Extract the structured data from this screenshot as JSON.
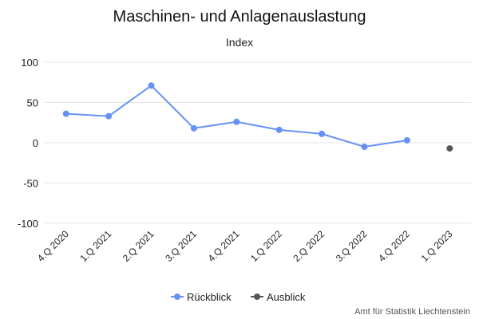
{
  "chart_data": {
    "type": "line",
    "title": "Maschinen- und Anlagenauslastung",
    "subtitle": "Index",
    "categories": [
      "4.Q 2020",
      "1.Q 2021",
      "2.Q 2021",
      "3.Q 2021",
      "4.Q 2021",
      "1.Q 2022",
      "2.Q 2022",
      "3.Q 2022",
      "4.Q 2022",
      "1.Q 2023"
    ],
    "ylim": [
      -100,
      100
    ],
    "yticks": [
      -100,
      -50,
      0,
      50,
      100
    ],
    "grid": true,
    "legend_position": "bottom-center",
    "series": [
      {
        "name": "Rückblick",
        "color": "#6591f5",
        "values": [
          36,
          33,
          71,
          18,
          26,
          16,
          11,
          -5,
          3,
          null
        ]
      },
      {
        "name": "Ausblick",
        "color": "#555555",
        "values": [
          null,
          null,
          null,
          null,
          null,
          null,
          null,
          null,
          null,
          -7
        ]
      }
    ],
    "credit": "Amt für Statistik Liechtenstein"
  }
}
